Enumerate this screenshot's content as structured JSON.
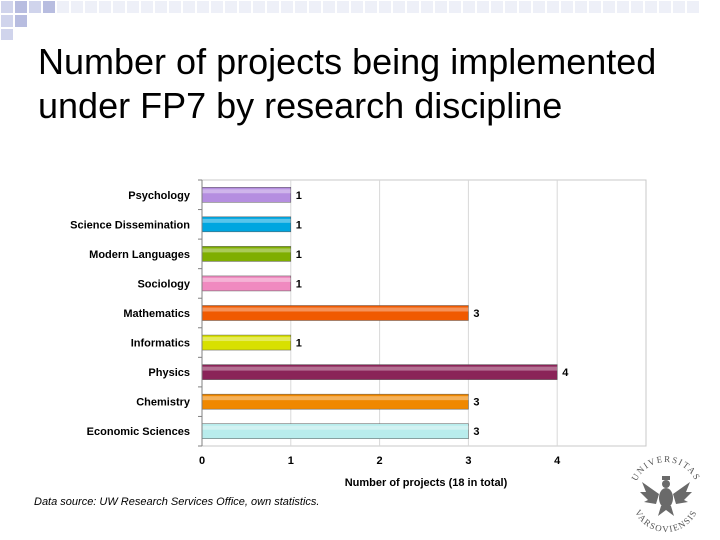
{
  "slide": {
    "title": "Number of projects being implemented under FP7 by research discipline",
    "footnote": "Data source: UW Research Services Office, own statistics.",
    "seal_text_top": "UNIVERSITAS",
    "seal_text_bottom": "VARSOVIENSIS",
    "accent_color": "#d0d4ec"
  },
  "chart_data": {
    "type": "bar",
    "orientation": "horizontal",
    "title": "",
    "xlabel": "Number of projects (18 in total)",
    "ylabel": "",
    "xlim": [
      0,
      5
    ],
    "xticks": [
      0,
      1,
      2,
      3,
      4
    ],
    "grid": true,
    "categories": [
      "Psychology",
      "Science Dissemination",
      "Modern Languages",
      "Sociology",
      "Mathematics",
      "Informatics",
      "Physics",
      "Chemistry",
      "Economic Sciences"
    ],
    "values": [
      1,
      1,
      1,
      1,
      3,
      1,
      4,
      3,
      3
    ],
    "colors": [
      "#b58ee0",
      "#00a6e0",
      "#7fae00",
      "#f08ac0",
      "#f05a00",
      "#d8e000",
      "#8a2458",
      "#f08800",
      "#b8ecec"
    ],
    "data_labels": [
      "1",
      "1",
      "1",
      "1",
      "3",
      "1",
      "4",
      "3",
      "3"
    ]
  }
}
